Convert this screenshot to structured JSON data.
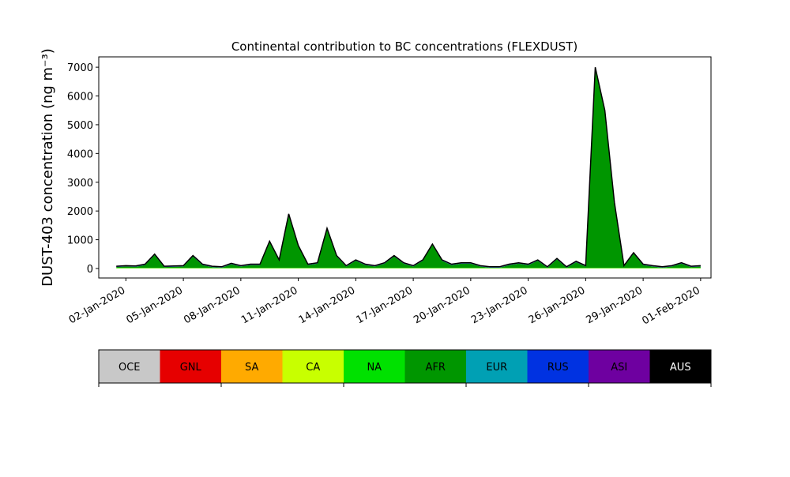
{
  "chart_data": {
    "type": "stacked-area",
    "title": "Continental contribution to BC concentrations (FLEXDUST)",
    "y_label": "DUST-403 concentration (ng m⁻³)",
    "x": [
      "2020-01-01T12:00",
      "2020-01-02T00:00",
      "2020-01-02T12:00",
      "2020-01-03T00:00",
      "2020-01-03T12:00",
      "2020-01-04T00:00",
      "2020-01-04T12:00",
      "2020-01-05T00:00",
      "2020-01-05T12:00",
      "2020-01-06T00:00",
      "2020-01-06T12:00",
      "2020-01-07T00:00",
      "2020-01-07T12:00",
      "2020-01-08T00:00",
      "2020-01-08T12:00",
      "2020-01-09T00:00",
      "2020-01-09T12:00",
      "2020-01-10T00:00",
      "2020-01-10T12:00",
      "2020-01-11T00:00",
      "2020-01-11T12:00",
      "2020-01-12T00:00",
      "2020-01-12T12:00",
      "2020-01-13T00:00",
      "2020-01-13T12:00",
      "2020-01-14T00:00",
      "2020-01-14T12:00",
      "2020-01-15T00:00",
      "2020-01-15T12:00",
      "2020-01-16T00:00",
      "2020-01-16T12:00",
      "2020-01-17T00:00",
      "2020-01-17T12:00",
      "2020-01-18T00:00",
      "2020-01-18T12:00",
      "2020-01-19T00:00",
      "2020-01-19T12:00",
      "2020-01-20T00:00",
      "2020-01-20T12:00",
      "2020-01-21T00:00",
      "2020-01-21T12:00",
      "2020-01-22T00:00",
      "2020-01-22T12:00",
      "2020-01-23T00:00",
      "2020-01-23T12:00",
      "2020-01-24T00:00",
      "2020-01-24T12:00",
      "2020-01-25T00:00",
      "2020-01-25T12:00",
      "2020-01-26T00:00",
      "2020-01-26T12:00",
      "2020-01-27T00:00",
      "2020-01-27T12:00",
      "2020-01-28T00:00",
      "2020-01-28T12:00",
      "2020-01-29T00:00",
      "2020-01-29T12:00",
      "2020-01-30T00:00",
      "2020-01-30T12:00",
      "2020-01-31T00:00",
      "2020-01-31T12:00",
      "2020-02-01T00:00"
    ],
    "series": [
      {
        "name": "OCE",
        "color": "#c8c8c8",
        "values": [
          0,
          0,
          0,
          0,
          0,
          0,
          0,
          0,
          0,
          0,
          0,
          0,
          0,
          0,
          0,
          0,
          0,
          0,
          0,
          0,
          0,
          0,
          0,
          0,
          0,
          0,
          0,
          0,
          0,
          0,
          0,
          0,
          0,
          0,
          0,
          0,
          0,
          0,
          0,
          0,
          0,
          0,
          0,
          0,
          0,
          0,
          0,
          0,
          0,
          0,
          0,
          0,
          0,
          0,
          0,
          0,
          0,
          0,
          0,
          0,
          0,
          0
        ]
      },
      {
        "name": "GNL",
        "color": "#e60000",
        "values": [
          0,
          0,
          0,
          0,
          0,
          0,
          0,
          0,
          0,
          0,
          0,
          0,
          0,
          0,
          0,
          0,
          0,
          0,
          0,
          0,
          0,
          0,
          0,
          0,
          0,
          0,
          0,
          0,
          0,
          0,
          0,
          0,
          0,
          0,
          0,
          0,
          0,
          0,
          0,
          0,
          0,
          0,
          0,
          0,
          0,
          0,
          0,
          0,
          0,
          0,
          0,
          0,
          0,
          0,
          0,
          0,
          0,
          0,
          0,
          0,
          0,
          0
        ]
      },
      {
        "name": "SA",
        "color": "#ffaa00",
        "values": [
          0,
          0,
          0,
          0,
          0,
          0,
          0,
          0,
          0,
          0,
          0,
          0,
          0,
          0,
          0,
          0,
          0,
          0,
          0,
          0,
          0,
          0,
          0,
          0,
          0,
          0,
          0,
          0,
          0,
          0,
          0,
          0,
          0,
          0,
          0,
          0,
          0,
          0,
          0,
          0,
          0,
          0,
          0,
          0,
          0,
          0,
          0,
          0,
          0,
          0,
          0,
          0,
          0,
          0,
          0,
          0,
          0,
          0,
          0,
          0,
          0,
          0
        ]
      },
      {
        "name": "CA",
        "color": "#c8ff00",
        "values": [
          10,
          10,
          10,
          10,
          10,
          10,
          10,
          10,
          10,
          10,
          10,
          10,
          10,
          10,
          10,
          10,
          10,
          10,
          10,
          10,
          10,
          10,
          10,
          10,
          10,
          10,
          10,
          10,
          10,
          10,
          10,
          10,
          10,
          10,
          10,
          10,
          10,
          10,
          10,
          10,
          10,
          10,
          10,
          10,
          10,
          10,
          10,
          10,
          10,
          10,
          10,
          10,
          10,
          10,
          10,
          10,
          10,
          10,
          10,
          10,
          10,
          10
        ]
      },
      {
        "name": "NA",
        "color": "#00e100",
        "values": [
          15,
          15,
          15,
          15,
          15,
          15,
          15,
          15,
          15,
          15,
          15,
          15,
          15,
          15,
          15,
          15,
          15,
          15,
          15,
          15,
          15,
          15,
          15,
          15,
          15,
          15,
          15,
          15,
          15,
          15,
          15,
          15,
          15,
          15,
          15,
          15,
          15,
          15,
          15,
          15,
          15,
          15,
          15,
          15,
          15,
          15,
          15,
          15,
          15,
          15,
          15,
          15,
          15,
          15,
          15,
          15,
          15,
          15,
          15,
          15,
          15,
          15
        ]
      },
      {
        "name": "AFR",
        "color": "#009600",
        "values": [
          25,
          45,
          35,
          95,
          445,
          25,
          35,
          45,
          395,
          95,
          25,
          5,
          125,
          45,
          95,
          95,
          895,
          245,
          1845,
          745,
          95,
          145,
          1345,
          395,
          45,
          245,
          95,
          45,
          145,
          395,
          145,
          45,
          245,
          795,
          245,
          95,
          145,
          145,
          45,
          5,
          5,
          95,
          145,
          95,
          245,
          5,
          295,
          5,
          195,
          45,
          6945,
          5445,
          2245,
          45,
          495,
          95,
          45,
          5,
          45,
          145,
          25,
          45
        ]
      },
      {
        "name": "EUR",
        "color": "#00a0b4",
        "values": [
          0,
          0,
          0,
          0,
          0,
          0,
          0,
          0,
          0,
          0,
          0,
          0,
          0,
          0,
          0,
          0,
          0,
          0,
          0,
          0,
          0,
          0,
          0,
          0,
          0,
          0,
          0,
          0,
          0,
          0,
          0,
          0,
          0,
          0,
          0,
          0,
          0,
          0,
          0,
          0,
          0,
          0,
          0,
          0,
          0,
          0,
          0,
          0,
          0,
          0,
          0,
          0,
          0,
          0,
          0,
          0,
          0,
          0,
          0,
          0,
          0,
          0
        ]
      },
      {
        "name": "RUS",
        "color": "#0032e1",
        "values": [
          10,
          10,
          10,
          10,
          10,
          10,
          10,
          10,
          10,
          10,
          10,
          10,
          10,
          10,
          10,
          10,
          10,
          10,
          10,
          10,
          10,
          10,
          10,
          10,
          10,
          10,
          10,
          10,
          10,
          10,
          10,
          10,
          10,
          10,
          10,
          10,
          10,
          10,
          10,
          10,
          10,
          10,
          10,
          10,
          10,
          10,
          10,
          10,
          10,
          10,
          10,
          10,
          10,
          10,
          10,
          10,
          10,
          10,
          10,
          10,
          10,
          10
        ]
      },
      {
        "name": "ASI",
        "color": "#6e00a0",
        "values": [
          20,
          20,
          20,
          20,
          20,
          20,
          20,
          20,
          20,
          20,
          20,
          20,
          20,
          20,
          20,
          20,
          20,
          20,
          20,
          20,
          20,
          20,
          20,
          20,
          20,
          20,
          20,
          20,
          20,
          20,
          20,
          20,
          20,
          20,
          20,
          20,
          20,
          20,
          20,
          20,
          20,
          20,
          20,
          20,
          20,
          20,
          20,
          20,
          20,
          20,
          20,
          20,
          20,
          20,
          20,
          20,
          20,
          20,
          20,
          20,
          20,
          20
        ]
      },
      {
        "name": "AUS",
        "color": "#000000",
        "values": [
          0,
          0,
          0,
          0,
          0,
          0,
          0,
          0,
          0,
          0,
          0,
          0,
          0,
          0,
          0,
          0,
          0,
          0,
          0,
          0,
          0,
          0,
          0,
          0,
          0,
          0,
          0,
          0,
          0,
          0,
          0,
          0,
          0,
          0,
          0,
          0,
          0,
          0,
          0,
          0,
          0,
          0,
          0,
          0,
          0,
          0,
          0,
          0,
          0,
          0,
          0,
          0,
          0,
          0,
          0,
          0,
          0,
          0,
          0,
          0,
          0,
          0
        ]
      }
    ],
    "xlim": [
      "2019-12-31T14:00",
      "2020-02-01T13:00"
    ],
    "xticks": [
      {
        "value": "2020-01-02T00:00",
        "label": "02-Jan-2020"
      },
      {
        "value": "2020-01-05T00:00",
        "label": "05-Jan-2020"
      },
      {
        "value": "2020-01-08T00:00",
        "label": "08-Jan-2020"
      },
      {
        "value": "2020-01-11T00:00",
        "label": "11-Jan-2020"
      },
      {
        "value": "2020-01-14T00:00",
        "label": "14-Jan-2020"
      },
      {
        "value": "2020-01-17T00:00",
        "label": "17-Jan-2020"
      },
      {
        "value": "2020-01-20T00:00",
        "label": "20-Jan-2020"
      },
      {
        "value": "2020-01-23T00:00",
        "label": "23-Jan-2020"
      },
      {
        "value": "2020-01-26T00:00",
        "label": "26-Jan-2020"
      },
      {
        "value": "2020-01-29T00:00",
        "label": "29-Jan-2020"
      },
      {
        "value": "2020-02-01T00:00",
        "label": "01-Feb-2020"
      }
    ],
    "ylim": [
      -330,
      7360
    ],
    "yticks": [
      0,
      1000,
      2000,
      3000,
      4000,
      5000,
      6000,
      7000
    ]
  }
}
